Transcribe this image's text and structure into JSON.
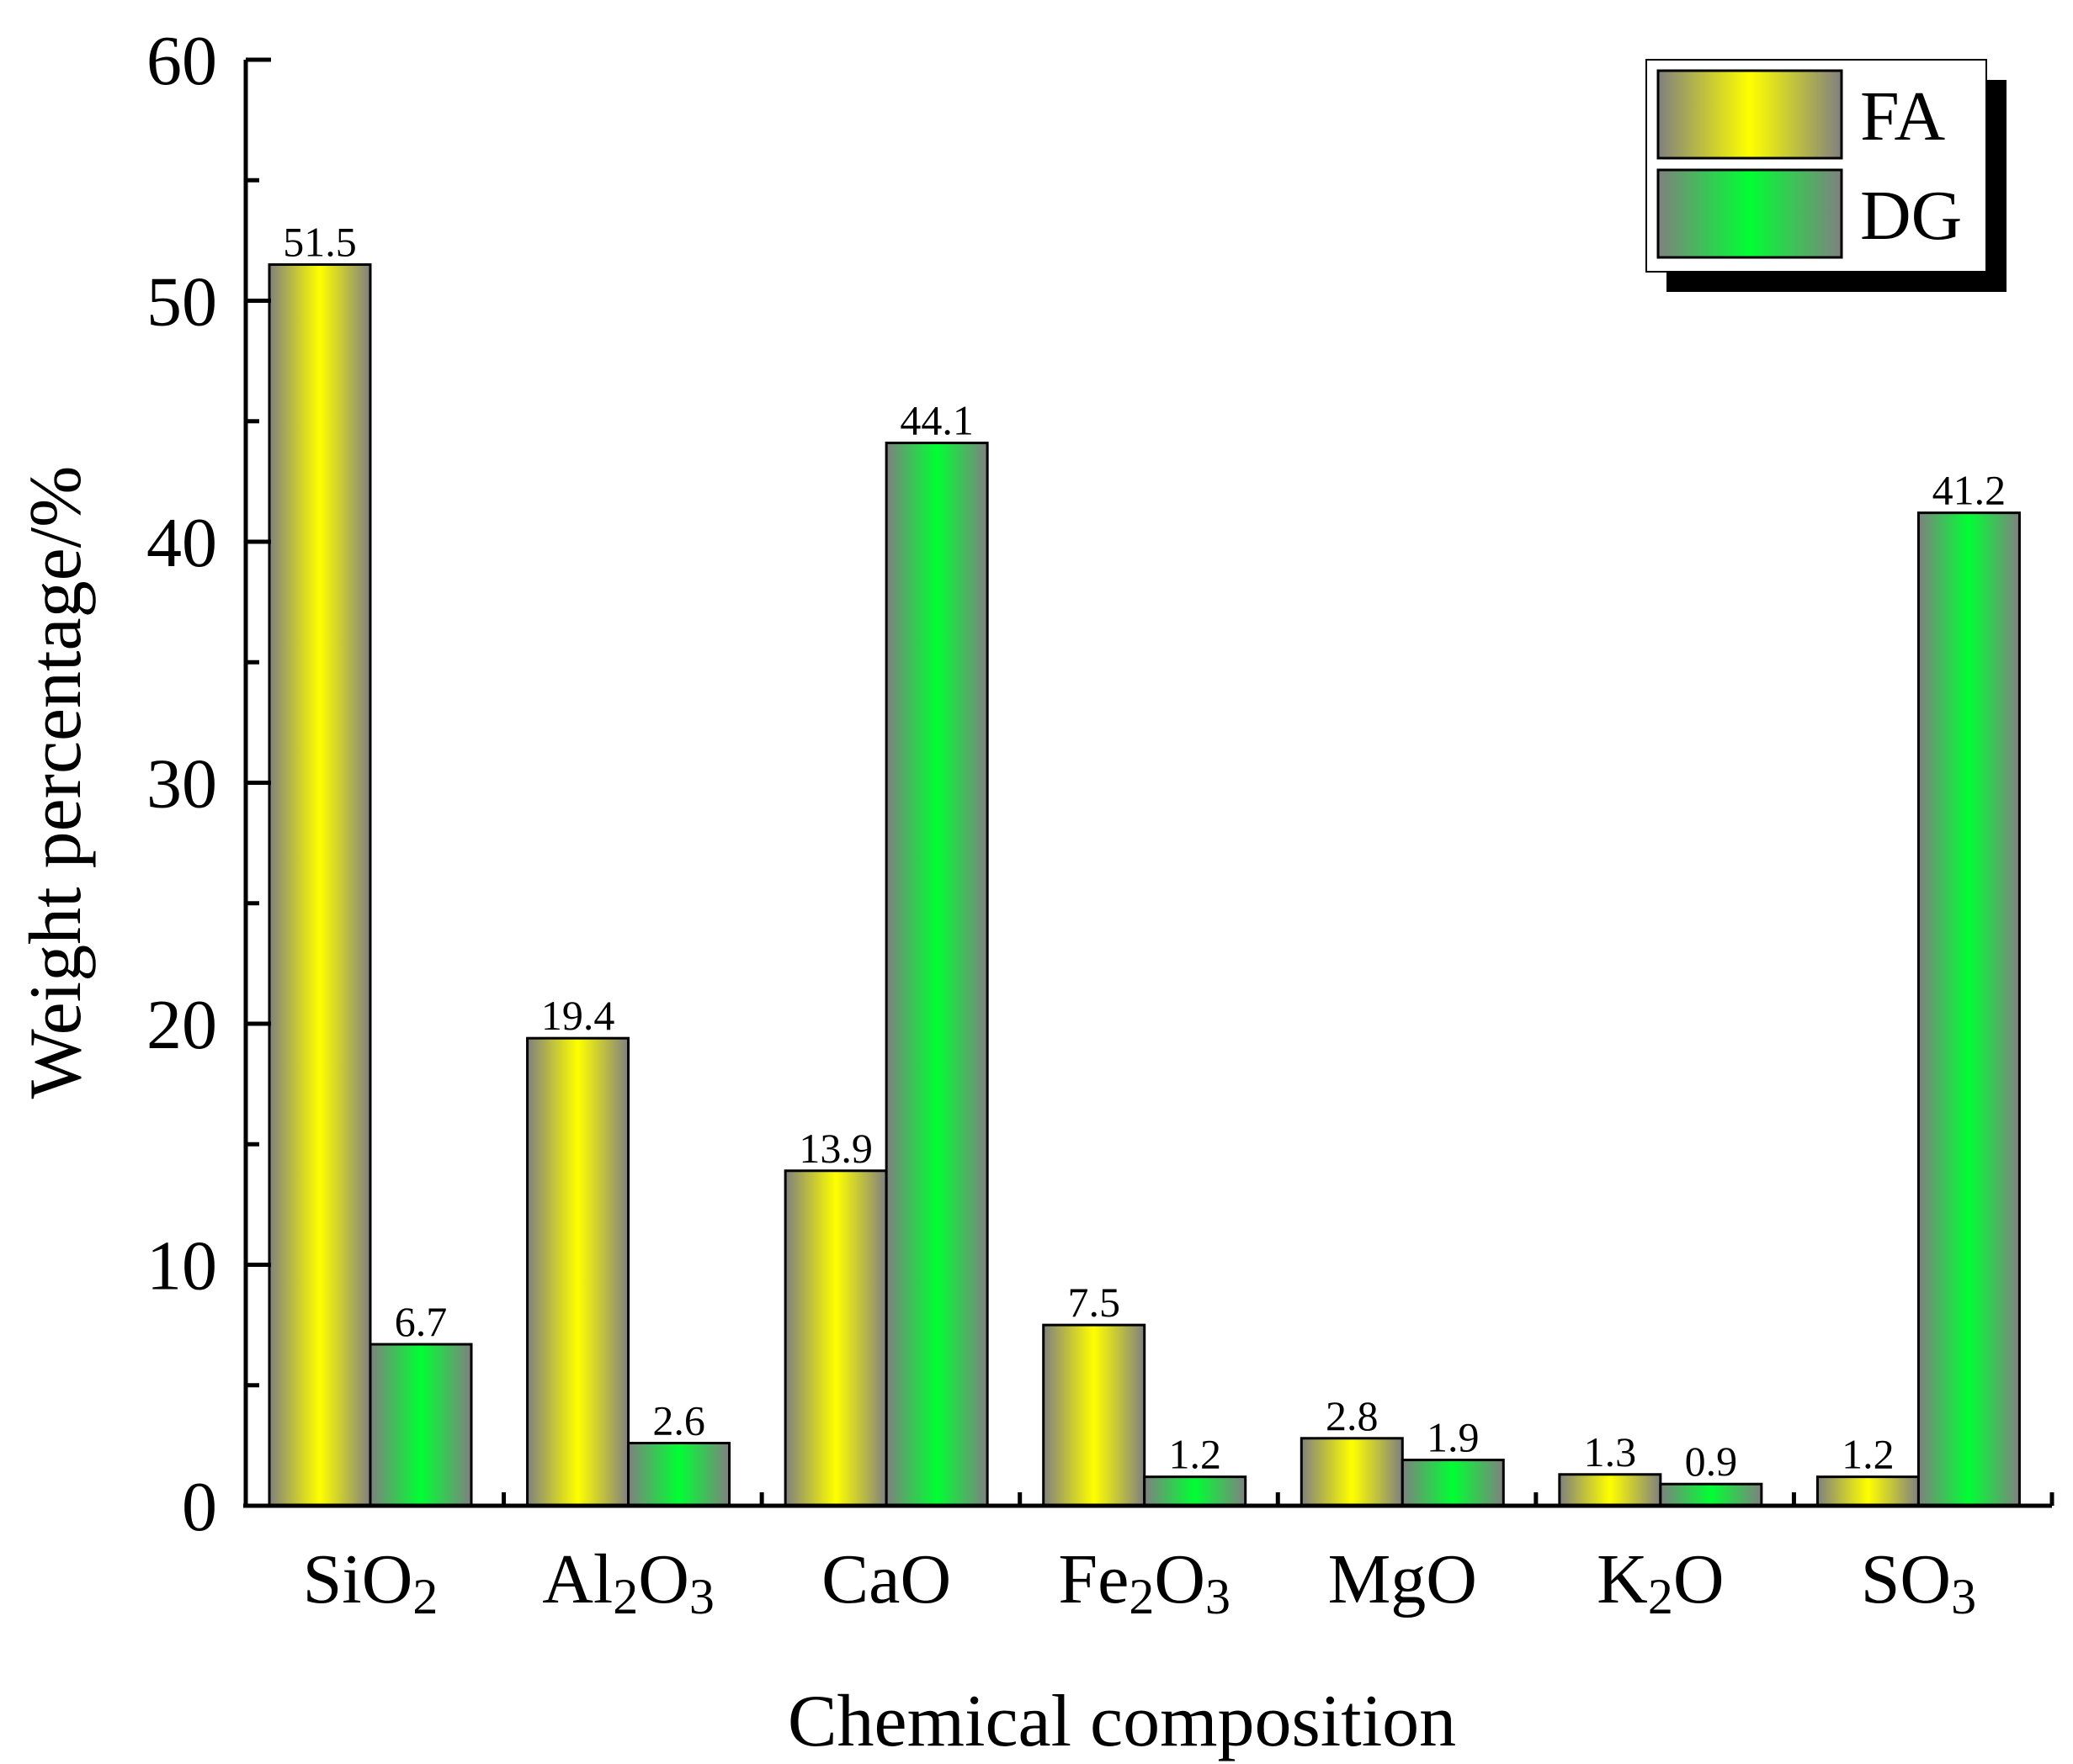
{
  "chart_data": {
    "type": "bar",
    "title": "",
    "xlabel": "Chemical composition",
    "ylabel": "Weight percentage/%",
    "ylim": [
      0,
      60
    ],
    "yticks": [
      "0",
      "10",
      "20",
      "30",
      "40",
      "50",
      "60"
    ],
    "categories": [
      {
        "base": "SiO",
        "parts": [
          [
            "SiO",
            false
          ],
          [
            "2",
            true
          ]
        ]
      },
      {
        "base": "Al",
        "parts": [
          [
            "Al",
            false
          ],
          [
            "2",
            true
          ],
          [
            "O",
            false
          ],
          [
            "3",
            true
          ]
        ]
      },
      {
        "base": "CaO",
        "parts": [
          [
            "CaO",
            false
          ]
        ]
      },
      {
        "base": "Fe",
        "parts": [
          [
            "Fe",
            false
          ],
          [
            "2",
            true
          ],
          [
            "O",
            false
          ],
          [
            "3",
            true
          ]
        ]
      },
      {
        "base": "MgO",
        "parts": [
          [
            "MgO",
            false
          ]
        ]
      },
      {
        "base": "K",
        "parts": [
          [
            "K",
            false
          ],
          [
            "2",
            true
          ],
          [
            "O",
            false
          ]
        ]
      },
      {
        "base": "SO",
        "parts": [
          [
            "SO",
            false
          ],
          [
            "3",
            true
          ]
        ]
      }
    ],
    "series": [
      {
        "name": "FA",
        "color": "#ffff00",
        "edge_color": "#808080",
        "values": [
          51.5,
          19.4,
          13.9,
          7.5,
          2.8,
          1.3,
          1.2
        ],
        "labels": [
          "51.5",
          "19.4",
          "13.9",
          "7.5",
          "2.8",
          "1.3",
          "1.2"
        ]
      },
      {
        "name": "DG",
        "color": "#00ff33",
        "edge_color": "#808080",
        "values": [
          6.7,
          2.6,
          44.1,
          1.2,
          1.9,
          0.9,
          41.2
        ],
        "labels": [
          "6.7",
          "2.6",
          "44.1",
          "1.2",
          "1.9",
          "0.9",
          "41.2"
        ]
      }
    ],
    "legend": {
      "position": "top-right",
      "entries": [
        "FA",
        "DG"
      ]
    },
    "grid": false
  }
}
